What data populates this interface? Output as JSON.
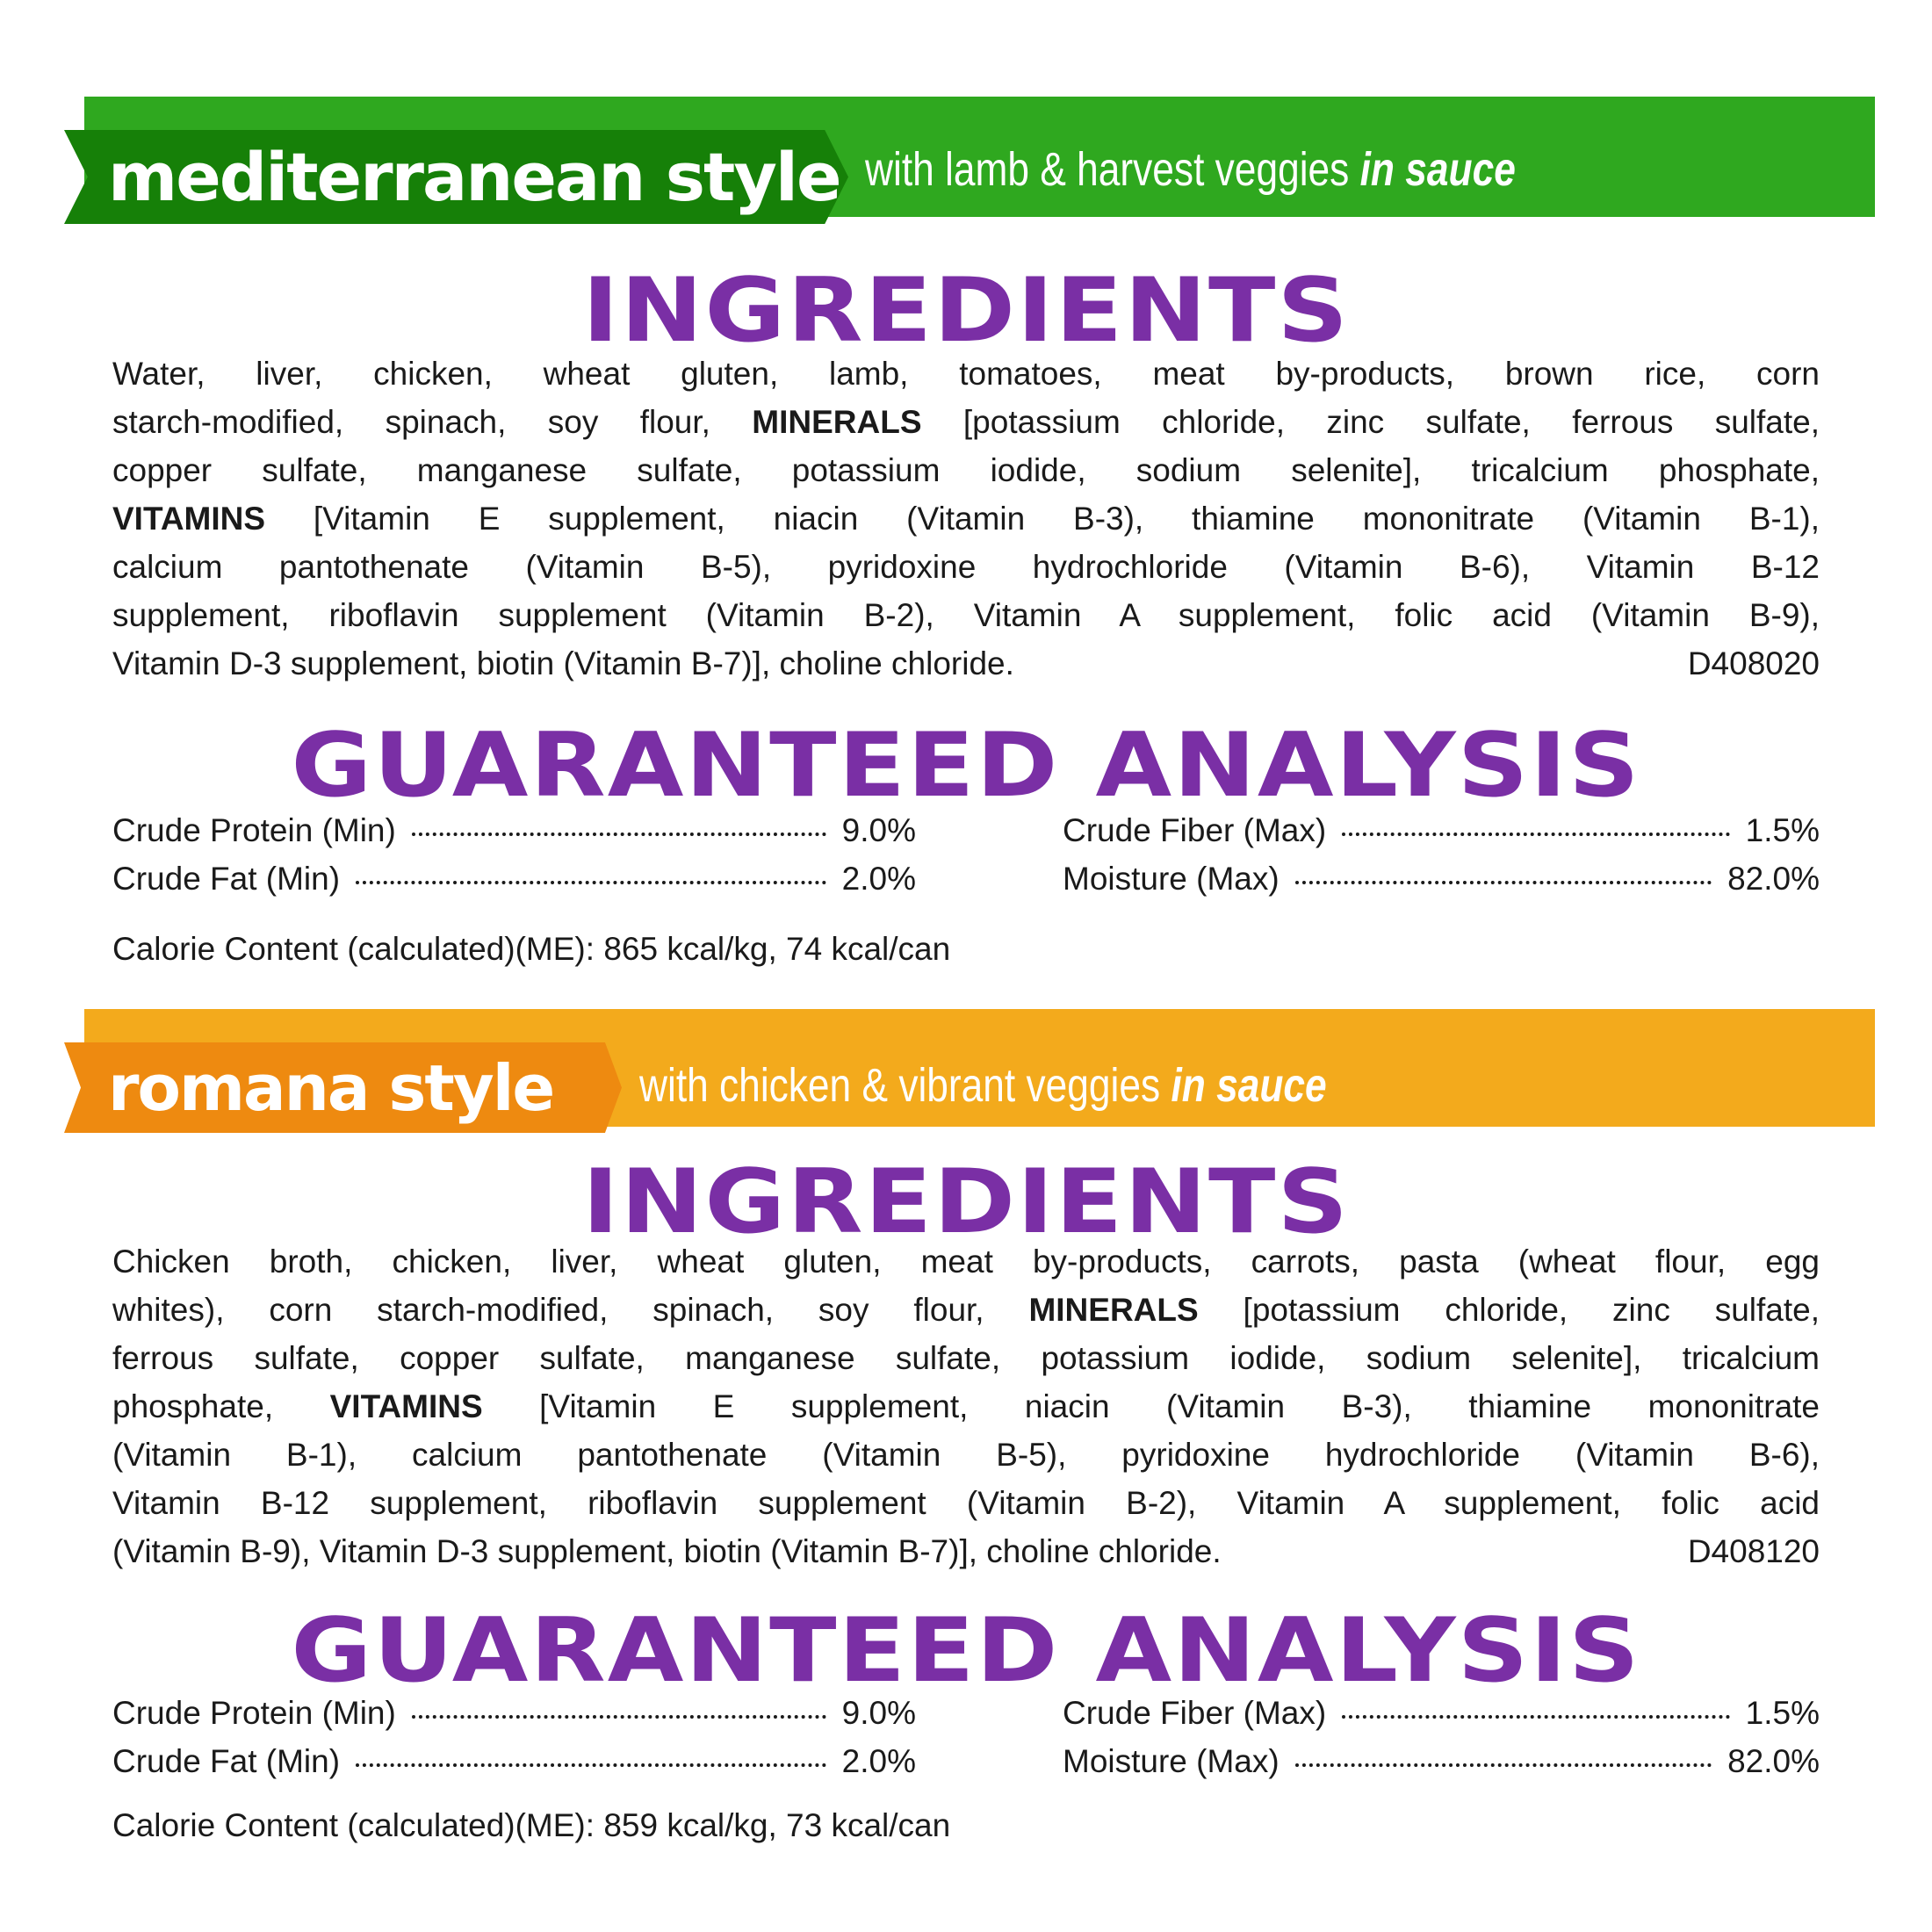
{
  "colors": {
    "green_band": "#2fa81f",
    "green_tag": "#168008",
    "orange_band": "#f3aa1c",
    "orange_tag": "#ee8a10",
    "heading": "#7a2fa5"
  },
  "products": [
    {
      "style": "mediterranean style",
      "subtitle": "with lamb & harvest veggies ",
      "subtitle_italic": "in sauce",
      "ingredients_heading": "INGREDIENTS",
      "ingredients_lines": [
        [
          {
            "t": "Water, liver, chicken, wheat gluten, lamb, tomatoes, meat by-products, brown rice, corn"
          }
        ],
        [
          {
            "t": "starch-modified, spinach, soy flour, "
          },
          {
            "t": "MINERALS",
            "b": true
          },
          {
            "t": " [potassium chloride, zinc sulfate, ferrous sulfate,"
          }
        ],
        [
          {
            "t": "copper sulfate, manganese sulfate, potassium iodide, sodium selenite], tricalcium phosphate,"
          }
        ],
        [
          {
            "t": "VITAMINS",
            "b": true
          },
          {
            "t": " [Vitamin E supplement, niacin (Vitamin B-3), thiamine mononitrate (Vitamin B-1),"
          }
        ],
        [
          {
            "t": "calcium pantothenate (Vitamin B-5), pyridoxine hydrochloride (Vitamin B-6), Vitamin B-12"
          }
        ],
        [
          {
            "t": "supplement, riboflavin supplement (Vitamin B-2), Vitamin A supplement, folic acid (Vitamin B-9),"
          }
        ]
      ],
      "ingredients_last": "Vitamin D-3 supplement, biotin (Vitamin B-7)], choline chloride.",
      "code": "D408020",
      "analysis_heading": "GUARANTEED ANALYSIS",
      "analysis": [
        {
          "label": "Crude Protein (Min)",
          "value": "9.0%"
        },
        {
          "label": "Crude Fat (Min)",
          "value": "2.0%"
        },
        {
          "label": "Crude Fiber (Max)",
          "value": "1.5%"
        },
        {
          "label": "Moisture (Max)",
          "value": "82.0%"
        }
      ],
      "calories": "Calorie Content (calculated)(ME): 865 kcal/kg, 74 kcal/can"
    },
    {
      "style": "romana style",
      "subtitle": "with chicken & vibrant veggies ",
      "subtitle_italic": "in sauce",
      "ingredients_heading": "INGREDIENTS",
      "ingredients_lines": [
        [
          {
            "t": "Chicken broth, chicken, liver, wheat gluten, meat by-products, carrots, pasta (wheat flour, egg"
          }
        ],
        [
          {
            "t": "whites), corn starch-modified, spinach, soy flour, "
          },
          {
            "t": "MINERALS",
            "b": true
          },
          {
            "t": " [potassium chloride, zinc sulfate,"
          }
        ],
        [
          {
            "t": "ferrous sulfate, copper sulfate, manganese sulfate, potassium iodide, sodium selenite], tricalcium"
          }
        ],
        [
          {
            "t": "phosphate, "
          },
          {
            "t": "VITAMINS",
            "b": true
          },
          {
            "t": " [Vitamin E supplement, niacin (Vitamin B-3), thiamine mononitrate"
          }
        ],
        [
          {
            "t": "(Vitamin B-1), calcium pantothenate (Vitamin B-5), pyridoxine hydrochloride (Vitamin B-6),"
          }
        ],
        [
          {
            "t": "Vitamin B-12 supplement, riboflavin supplement (Vitamin B-2), Vitamin A supplement, folic acid"
          }
        ]
      ],
      "ingredients_last": "(Vitamin B-9), Vitamin D-3 supplement, biotin (Vitamin B-7)], choline chloride.",
      "code": "D408120",
      "analysis_heading": "GUARANTEED ANALYSIS",
      "analysis": [
        {
          "label": "Crude Protein (Min)",
          "value": "9.0%"
        },
        {
          "label": "Crude Fat (Min)",
          "value": "2.0%"
        },
        {
          "label": "Crude Fiber (Max)",
          "value": "1.5%"
        },
        {
          "label": "Moisture (Max)",
          "value": "82.0%"
        }
      ],
      "calories": "Calorie Content (calculated)(ME): 859 kcal/kg, 73 kcal/can"
    }
  ]
}
